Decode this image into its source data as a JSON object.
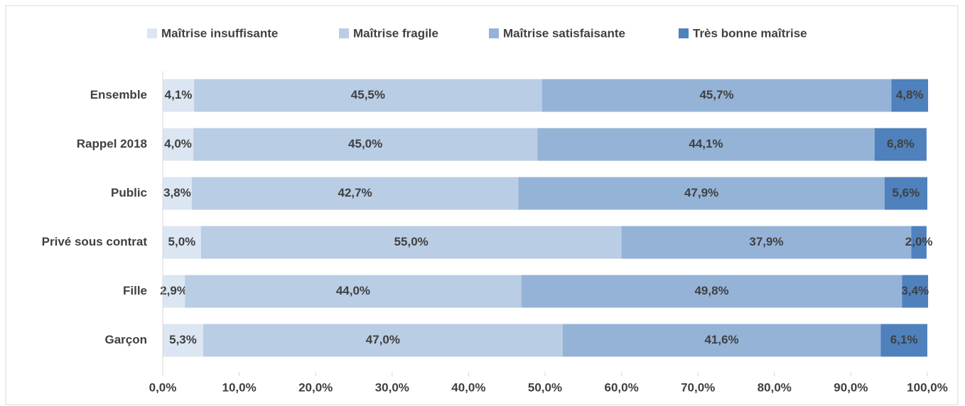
{
  "chart_data": {
    "type": "stacked-bar-horizontal",
    "categories": [
      "Ensemble",
      "Rappel 2018",
      "Public",
      "Privé sous contrat",
      "Fille",
      "Garçon"
    ],
    "series": [
      {
        "name": "Maîtrise insuffisante",
        "color": "#dce6f2",
        "values": [
          4.1,
          4.0,
          3.8,
          5.0,
          2.9,
          5.3
        ],
        "value_labels": [
          "4,1%",
          "4,0%",
          "3,8%",
          "5,0%",
          "2,9%",
          "5,3%"
        ]
      },
      {
        "name": "Maîtrise fragile",
        "color": "#b9cde5",
        "values": [
          45.5,
          45.0,
          42.7,
          55.0,
          44.0,
          47.0
        ],
        "value_labels": [
          "45,5%",
          "45,0%",
          "42,7%",
          "55,0%",
          "44,0%",
          "47,0%"
        ]
      },
      {
        "name": "Maîtrise satisfaisante",
        "color": "#95b3d7",
        "values": [
          45.7,
          44.1,
          47.9,
          37.9,
          49.8,
          41.6
        ],
        "value_labels": [
          "45,7%",
          "44,1%",
          "47,9%",
          "37,9%",
          "49,8%",
          "41,6%"
        ]
      },
      {
        "name": "Très bonne maîtrise",
        "color": "#4f81bd",
        "values": [
          4.8,
          6.8,
          5.6,
          2.0,
          3.4,
          6.1
        ],
        "value_labels": [
          "4,8%",
          "6,8%",
          "5,6%",
          "2,0%",
          "3,4%",
          "6,1%"
        ]
      }
    ],
    "xlim": [
      0,
      100
    ],
    "xticks": [
      {
        "value": 0,
        "label": "0,0%"
      },
      {
        "value": 10,
        "label": "10,0%"
      },
      {
        "value": 20,
        "label": "20,0%"
      },
      {
        "value": 30,
        "label": "30,0%"
      },
      {
        "value": 40,
        "label": "40,0%"
      },
      {
        "value": 50,
        "label": "50,0%"
      },
      {
        "value": 60,
        "label": "60,0%"
      },
      {
        "value": 70,
        "label": "70,0%"
      },
      {
        "value": 80,
        "label": "80,0%"
      },
      {
        "value": 90,
        "label": "90,0%"
      },
      {
        "value": 100,
        "label": "100,0%"
      }
    ],
    "legend": "top"
  }
}
